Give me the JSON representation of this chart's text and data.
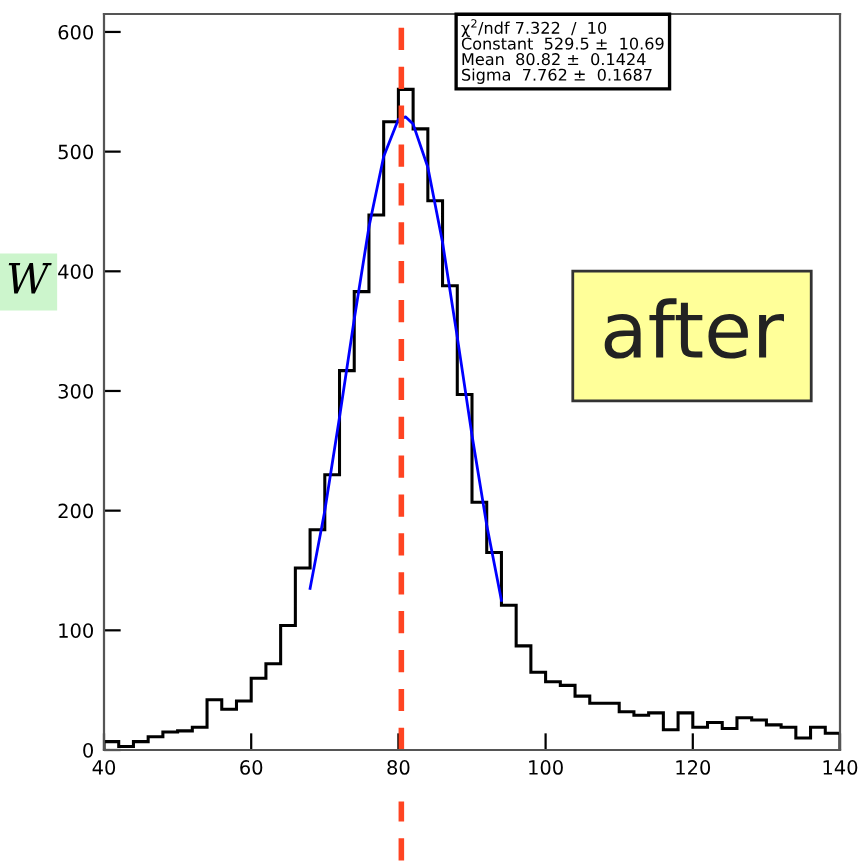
{
  "chart_data": {
    "type": "histogram",
    "bins": [
      40,
      42,
      44,
      46,
      48,
      50,
      52,
      54,
      56,
      58,
      60,
      62,
      64,
      66,
      68,
      70,
      72,
      74,
      76,
      78,
      80,
      82,
      84,
      86,
      88,
      90,
      92,
      94,
      96,
      98,
      100,
      102,
      104,
      106,
      108,
      110,
      112,
      114,
      116,
      118,
      120,
      122,
      124,
      126,
      128,
      130,
      132,
      134,
      136,
      138,
      140
    ],
    "values": [
      7,
      3,
      7,
      11,
      15,
      16,
      19,
      42,
      34,
      41,
      60,
      72,
      104,
      152,
      184,
      230,
      317,
      383,
      447,
      525,
      552,
      519,
      459,
      388,
      297,
      207,
      165,
      121,
      87,
      65,
      57,
      54,
      45,
      39,
      39,
      32,
      29,
      31,
      17,
      31,
      19,
      23,
      18,
      27,
      25,
      21,
      19,
      10,
      19,
      14
    ],
    "color": "#000000",
    "series": [
      {
        "type": "line",
        "color": "#0000ff",
        "x": [
          68,
          70,
          72,
          74,
          76,
          78,
          80,
          81,
          82,
          84,
          86,
          88,
          90,
          92,
          94
        ],
        "values": [
          135,
          200,
          278,
          360,
          437,
          496,
          527,
          529,
          523,
          487,
          424,
          345,
          263,
          188,
          125
        ]
      }
    ],
    "xlim": [
      40,
      140
    ],
    "ylim": [
      0,
      615
    ],
    "xticks": [
      40,
      60,
      80,
      100,
      120,
      140
    ],
    "yticks": [
      0,
      100,
      200,
      300,
      400,
      500,
      600
    ],
    "ref_lines": [
      {
        "axis": "x",
        "value": 80.4,
        "color": "#ff4422",
        "line_style": "dashed"
      }
    ],
    "annotations": [
      "χ$^{2}$/ndf 7.322  /  10",
      "Constant  529.5 ±  10.69",
      "Mean  80.82 ±  0.1424",
      "Sigma  7.762 ±  0.1687",
      "after",
      "W"
    ],
    "grid": false,
    "legend": false
  }
}
